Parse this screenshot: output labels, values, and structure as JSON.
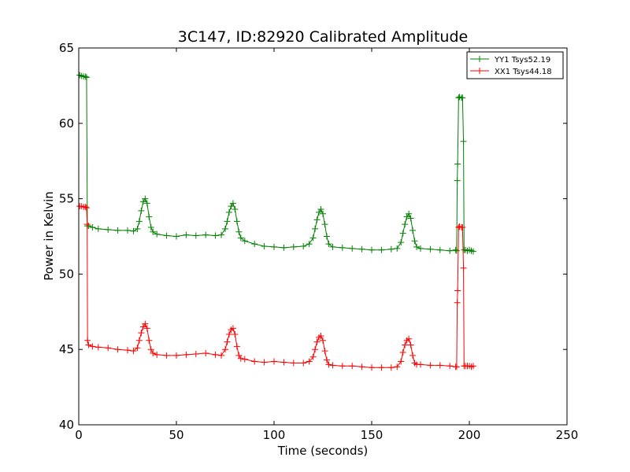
{
  "chart_data": {
    "type": "line",
    "title": "3C147, ID:82920 Calibrated Amplitude",
    "xlabel": "Time (seconds)",
    "ylabel": "Power in Kelvin",
    "xlim": [
      0,
      250
    ],
    "ylim": [
      40,
      65
    ],
    "xticks": [
      0,
      50,
      100,
      150,
      200,
      250
    ],
    "yticks": [
      40,
      45,
      50,
      55,
      60,
      65
    ],
    "grid": false,
    "legend_position": "top-right",
    "marker": "plus",
    "series": [
      {
        "name": "YY1 Tsys52.19",
        "color": "#008000",
        "points": [
          [
            0.5,
            63.2
          ],
          [
            1.5,
            63.15
          ],
          [
            2.5,
            63.1
          ],
          [
            3.5,
            63.1
          ],
          [
            4.0,
            63.05
          ],
          [
            4.4,
            53.2
          ],
          [
            5,
            53.2
          ],
          [
            7,
            53.1
          ],
          [
            10,
            53.0
          ],
          [
            15,
            52.95
          ],
          [
            20,
            52.9
          ],
          [
            25,
            52.9
          ],
          [
            28,
            52.85
          ],
          [
            30,
            53.0
          ],
          [
            31,
            53.5
          ],
          [
            32,
            54.2
          ],
          [
            33,
            54.8
          ],
          [
            34,
            55.0
          ],
          [
            35,
            54.7
          ],
          [
            36,
            53.8
          ],
          [
            37,
            53.1
          ],
          [
            38,
            52.8
          ],
          [
            40,
            52.65
          ],
          [
            45,
            52.55
          ],
          [
            50,
            52.5
          ],
          [
            55,
            52.6
          ],
          [
            60,
            52.55
          ],
          [
            65,
            52.6
          ],
          [
            70,
            52.55
          ],
          [
            73,
            52.6
          ],
          [
            75,
            53.0
          ],
          [
            76,
            53.5
          ],
          [
            77,
            54.1
          ],
          [
            78,
            54.5
          ],
          [
            79,
            54.7
          ],
          [
            80,
            54.3
          ],
          [
            81,
            53.5
          ],
          [
            82,
            52.8
          ],
          [
            83,
            52.4
          ],
          [
            85,
            52.2
          ],
          [
            90,
            52.0
          ],
          [
            95,
            51.85
          ],
          [
            100,
            51.8
          ],
          [
            105,
            51.75
          ],
          [
            110,
            51.8
          ],
          [
            115,
            51.85
          ],
          [
            118,
            52.0
          ],
          [
            120,
            52.4
          ],
          [
            121,
            53.0
          ],
          [
            122,
            53.6
          ],
          [
            123,
            54.1
          ],
          [
            124,
            54.3
          ],
          [
            125,
            54.0
          ],
          [
            126,
            53.3
          ],
          [
            127,
            52.5
          ],
          [
            128,
            52.0
          ],
          [
            130,
            51.8
          ],
          [
            135,
            51.75
          ],
          [
            140,
            51.7
          ],
          [
            145,
            51.65
          ],
          [
            150,
            51.6
          ],
          [
            155,
            51.6
          ],
          [
            160,
            51.65
          ],
          [
            163,
            51.7
          ],
          [
            165,
            52.1
          ],
          [
            166,
            52.7
          ],
          [
            167,
            53.3
          ],
          [
            168,
            53.8
          ],
          [
            169,
            54.0
          ],
          [
            170,
            53.7
          ],
          [
            171,
            52.9
          ],
          [
            172,
            52.2
          ],
          [
            173,
            51.8
          ],
          [
            175,
            51.7
          ],
          [
            180,
            51.65
          ],
          [
            185,
            51.6
          ],
          [
            190,
            51.55
          ],
          [
            193,
            51.6
          ],
          [
            193.5,
            51.55
          ],
          [
            193.8,
            56.2
          ],
          [
            194.0,
            57.3
          ],
          [
            194.5,
            61.7
          ],
          [
            195,
            61.75
          ],
          [
            196,
            61.7
          ],
          [
            196.5,
            61.7
          ],
          [
            197,
            58.8
          ],
          [
            197.3,
            51.6
          ],
          [
            198,
            51.6
          ],
          [
            199,
            51.55
          ],
          [
            200,
            51.6
          ],
          [
            201,
            51.55
          ],
          [
            202,
            51.5
          ]
        ]
      },
      {
        "name": "XX1 Tsys44.18",
        "color": "#ff0000",
        "points": [
          [
            0.5,
            54.5
          ],
          [
            1.5,
            54.5
          ],
          [
            2.5,
            54.45
          ],
          [
            3.5,
            54.45
          ],
          [
            4.0,
            54.4
          ],
          [
            4.3,
            53.3
          ],
          [
            4.5,
            45.6
          ],
          [
            5,
            45.3
          ],
          [
            7,
            45.2
          ],
          [
            10,
            45.15
          ],
          [
            15,
            45.1
          ],
          [
            20,
            45.0
          ],
          [
            25,
            44.95
          ],
          [
            28,
            44.9
          ],
          [
            30,
            45.1
          ],
          [
            31,
            45.6
          ],
          [
            32,
            46.1
          ],
          [
            33,
            46.5
          ],
          [
            34,
            46.7
          ],
          [
            35,
            46.4
          ],
          [
            36,
            45.6
          ],
          [
            37,
            45.0
          ],
          [
            38,
            44.75
          ],
          [
            40,
            44.65
          ],
          [
            45,
            44.6
          ],
          [
            50,
            44.6
          ],
          [
            55,
            44.65
          ],
          [
            60,
            44.7
          ],
          [
            65,
            44.75
          ],
          [
            70,
            44.65
          ],
          [
            73,
            44.6
          ],
          [
            75,
            45.0
          ],
          [
            76,
            45.5
          ],
          [
            77,
            46.0
          ],
          [
            78,
            46.3
          ],
          [
            79,
            46.4
          ],
          [
            80,
            46.0
          ],
          [
            81,
            45.2
          ],
          [
            82,
            44.6
          ],
          [
            83,
            44.4
          ],
          [
            85,
            44.35
          ],
          [
            90,
            44.2
          ],
          [
            95,
            44.15
          ],
          [
            100,
            44.2
          ],
          [
            105,
            44.15
          ],
          [
            110,
            44.1
          ],
          [
            115,
            44.1
          ],
          [
            118,
            44.2
          ],
          [
            120,
            44.5
          ],
          [
            121,
            45.0
          ],
          [
            122,
            45.5
          ],
          [
            123,
            45.8
          ],
          [
            124,
            45.9
          ],
          [
            125,
            45.6
          ],
          [
            126,
            44.9
          ],
          [
            127,
            44.3
          ],
          [
            128,
            44.0
          ],
          [
            130,
            43.95
          ],
          [
            135,
            43.9
          ],
          [
            140,
            43.9
          ],
          [
            145,
            43.85
          ],
          [
            150,
            43.8
          ],
          [
            155,
            43.8
          ],
          [
            160,
            43.8
          ],
          [
            163,
            43.85
          ],
          [
            165,
            44.2
          ],
          [
            166,
            44.8
          ],
          [
            167,
            45.3
          ],
          [
            168,
            45.6
          ],
          [
            169,
            45.7
          ],
          [
            170,
            45.3
          ],
          [
            171,
            44.6
          ],
          [
            172,
            44.1
          ],
          [
            173,
            44.0
          ],
          [
            175,
            44.0
          ],
          [
            180,
            43.95
          ],
          [
            185,
            43.95
          ],
          [
            190,
            43.9
          ],
          [
            193,
            43.85
          ],
          [
            193.5,
            43.85
          ],
          [
            193.8,
            48.1
          ],
          [
            194.0,
            48.9
          ],
          [
            194.5,
            53.1
          ],
          [
            195,
            53.15
          ],
          [
            196,
            53.1
          ],
          [
            196.5,
            53.1
          ],
          [
            197,
            50.4
          ],
          [
            197.3,
            43.9
          ],
          [
            198,
            43.9
          ],
          [
            199,
            43.9
          ],
          [
            200,
            43.9
          ],
          [
            201,
            43.85
          ],
          [
            202,
            43.9
          ]
        ]
      }
    ]
  }
}
